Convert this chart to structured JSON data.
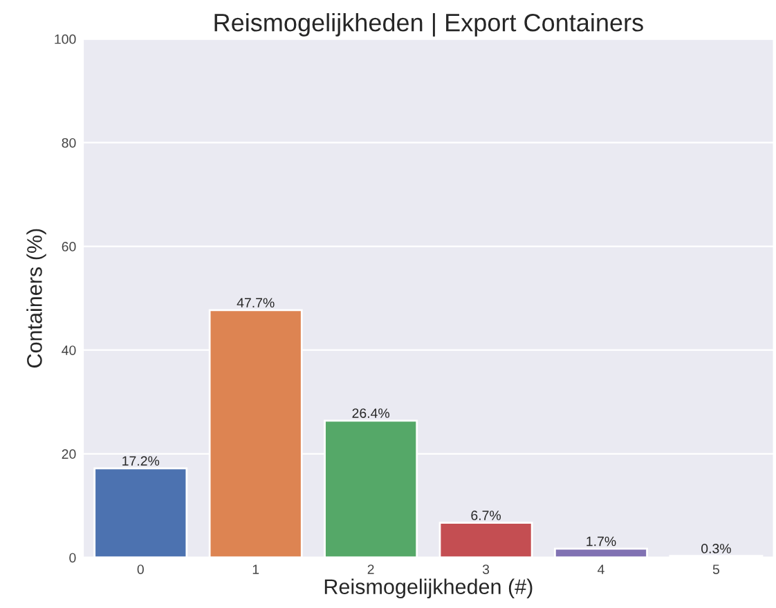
{
  "chart_data": {
    "type": "bar",
    "title": "Reismogelijkheden | Export Containers",
    "xlabel": "Reismogelijkheden (#)",
    "ylabel": "Containers (%)",
    "categories": [
      "0",
      "1",
      "2",
      "3",
      "4",
      "5"
    ],
    "values": [
      17.2,
      47.7,
      26.4,
      6.7,
      1.7,
      0.3
    ],
    "colors": [
      "#4c72b0",
      "#dd8452",
      "#55a868",
      "#c44e52",
      "#8172b3",
      "#937860"
    ],
    "value_labels": [
      "17.2%",
      "47.7%",
      "26.4%",
      "6.7%",
      "1.7%",
      "0.3%"
    ],
    "ylim": [
      0,
      100
    ],
    "yticks": [
      0,
      20,
      40,
      60,
      80,
      100
    ],
    "grid": "y"
  }
}
